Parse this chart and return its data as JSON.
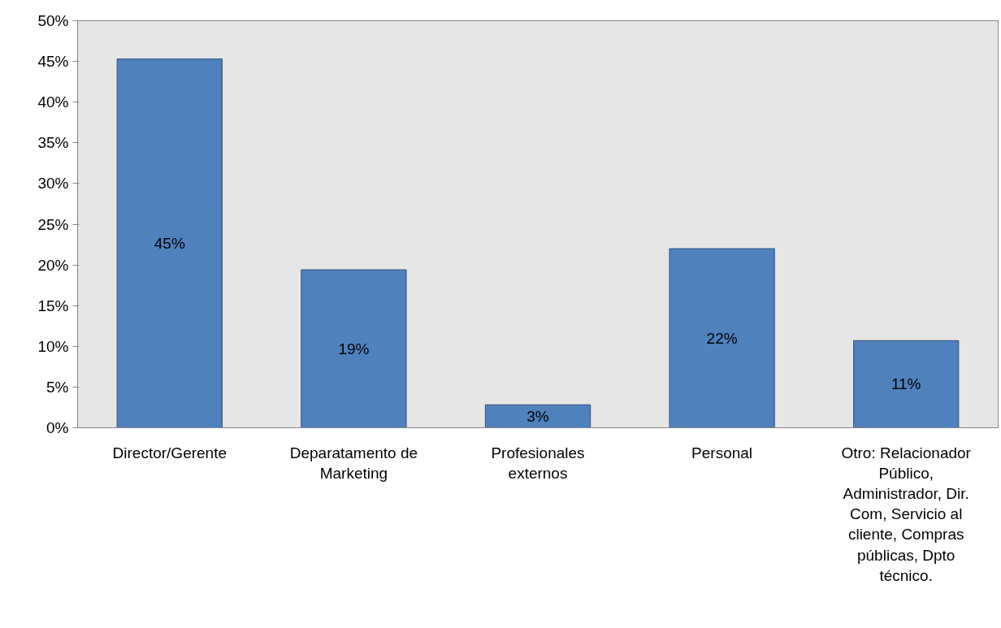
{
  "chart_data": {
    "type": "bar",
    "categories": [
      "Director/Gerente",
      "Deparatamento de Marketing",
      "Profesionales externos",
      "Personal",
      "Otro: Relacionador Público, Administrador, Dir. Com, Servicio al cliente, Compras públicas, Dpto técnico."
    ],
    "values": [
      45.3,
      19.4,
      2.8,
      22.0,
      10.7
    ],
    "value_labels": [
      "45%",
      "19%",
      "3%",
      "22%",
      "11%"
    ],
    "color": "#4f81bd",
    "ylim": [
      0,
      50
    ],
    "yticks": [
      {
        "value": 0,
        "label": "0%"
      },
      {
        "value": 5,
        "label": "5%"
      },
      {
        "value": 10,
        "label": "10%"
      },
      {
        "value": 15,
        "label": "15%"
      },
      {
        "value": 20,
        "label": "20%"
      },
      {
        "value": 25,
        "label": "25%"
      },
      {
        "value": 30,
        "label": "30%"
      },
      {
        "value": 35,
        "label": "35%"
      },
      {
        "value": 40,
        "label": "40%"
      },
      {
        "value": 45,
        "label": "45%"
      },
      {
        "value": 50,
        "label": "50%"
      }
    ],
    "grid": false
  }
}
